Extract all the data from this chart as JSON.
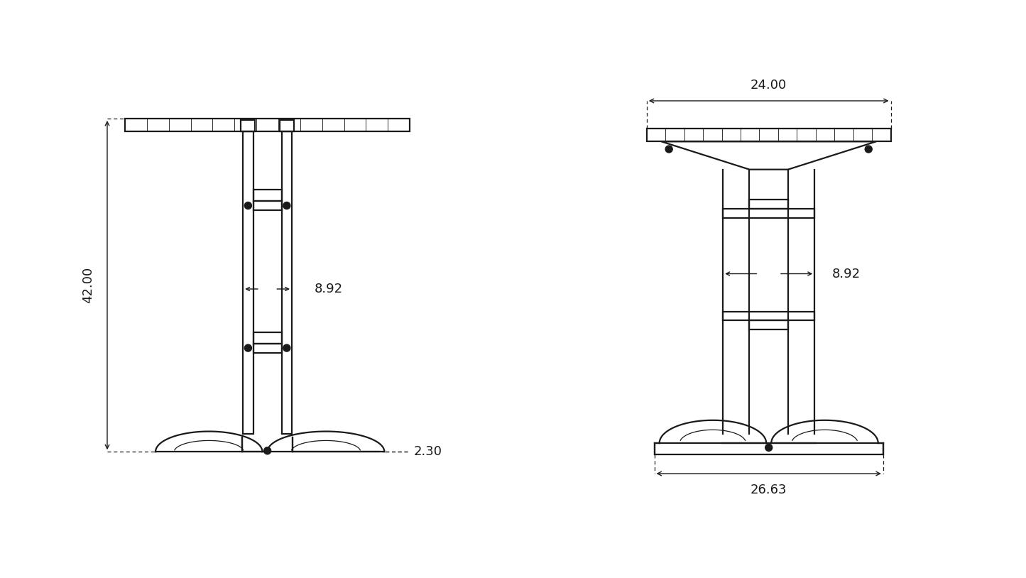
{
  "bg_color": "#ffffff",
  "line_color": "#1a1a1a",
  "line_width": 1.6,
  "lw_thin": 0.9,
  "annotation_fontsize": 13,
  "dim_42": "42.00",
  "dim_8_92_left": "8.92",
  "dim_8_92_right": "8.92",
  "dim_2_30": "2.30",
  "dim_24": "24.00",
  "dim_26_63": "26.63"
}
